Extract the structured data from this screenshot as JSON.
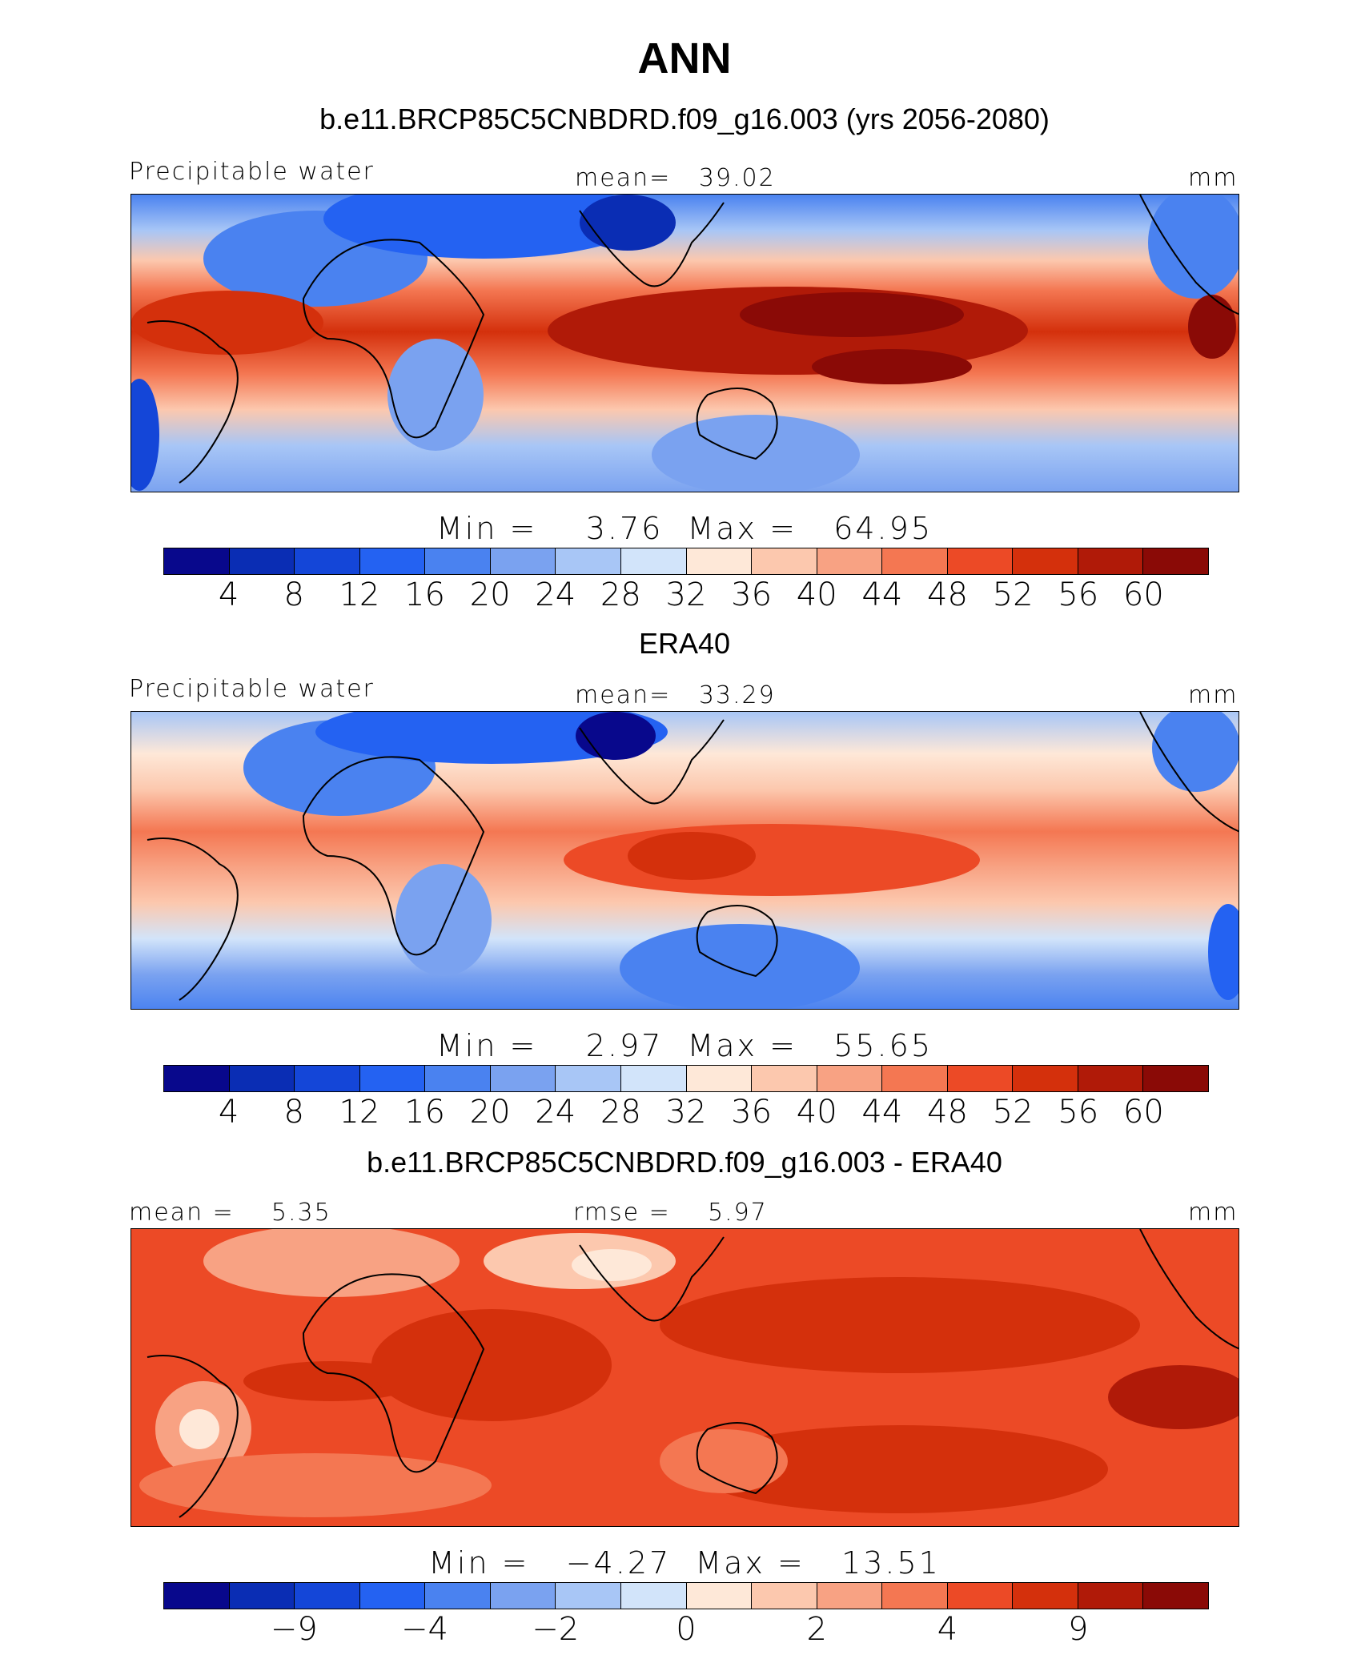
{
  "title": "ANN",
  "colors": [
    "#08088c",
    "#0a2db4",
    "#1446d8",
    "#2462f2",
    "#4a82f0",
    "#7aa2f0",
    "#a8c6f6",
    "#d2e4fa",
    "#fee8d8",
    "#fcc8ae",
    "#f8a283",
    "#f47752",
    "#ec4a26",
    "#d4300c",
    "#b01a08",
    "#8a0a06"
  ],
  "panels": [
    {
      "name": "model",
      "subtitle": "b.e11.BRCP85C5CNBDRD.f09_g16.003 (yrs 2056-2080)",
      "left_label": "Precipitable water",
      "center_label": "mean=",
      "center_value": "39.02",
      "units": "mm",
      "min_label": "Min =",
      "min_value": "3.76",
      "max_label": "Max =",
      "max_value": "64.95",
      "levels": [
        "4",
        "8",
        "12",
        "16",
        "20",
        "24",
        "28",
        "32",
        "36",
        "40",
        "44",
        "48",
        "52",
        "56",
        "60"
      ]
    },
    {
      "name": "obs",
      "subtitle": "ERA40",
      "left_label": "Precipitable water",
      "center_label": "mean=",
      "center_value": "33.29",
      "units": "mm",
      "min_label": "Min =",
      "min_value": "2.97",
      "max_label": "Max =",
      "max_value": "55.65",
      "levels": [
        "4",
        "8",
        "12",
        "16",
        "20",
        "24",
        "28",
        "32",
        "36",
        "40",
        "44",
        "48",
        "52",
        "56",
        "60"
      ]
    },
    {
      "name": "diff",
      "subtitle": "b.e11.BRCP85C5CNBDRD.f09_g16.003 - ERA40",
      "left_label": "mean =",
      "left_value": "5.35",
      "center_label": "rmse =",
      "center_value": "5.97",
      "units": "mm",
      "min_label": "Min =",
      "min_value": "−4.27",
      "max_label": "Max =",
      "max_value": "13.51",
      "levels": [
        "",
        "−9",
        "",
        "−4",
        "",
        "−2",
        "",
        "0",
        "",
        "2",
        "",
        "4",
        "",
        "9",
        ""
      ]
    }
  ]
}
